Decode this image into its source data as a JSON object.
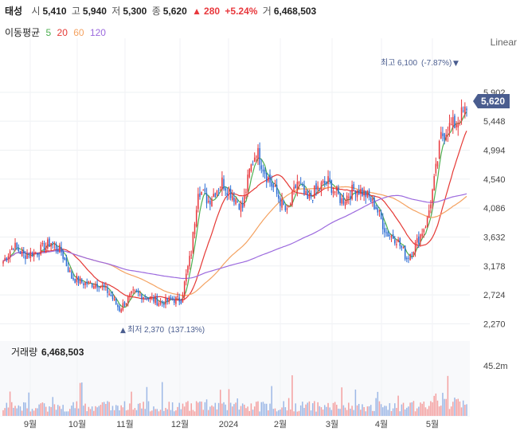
{
  "header": {
    "name": "태성",
    "open_label": "시",
    "open": "5,410",
    "high_label": "고",
    "high": "5,940",
    "low_label": "저",
    "low": "5,300",
    "close_label": "종",
    "close": "5,620",
    "change_arrow": "▲",
    "change": "280",
    "change_pct": "+5.24%",
    "volume_label": "거",
    "volume": "6,468,503"
  },
  "ma_legend": {
    "label": "이동평균",
    "periods": [
      {
        "text": "5",
        "color": "#4caf50"
      },
      {
        "text": "20",
        "color": "#e53935"
      },
      {
        "text": "60",
        "color": "#f4a261"
      },
      {
        "text": "120",
        "color": "#9c6ade"
      }
    ]
  },
  "scale_mode": "Linear",
  "colors": {
    "up": "#e8383d",
    "down": "#2b6cd4",
    "volume_up": "#f4a0a0",
    "volume_down": "#9db8e6",
    "badge": "#4a5d8f"
  },
  "chart_data": {
    "type": "candlestick",
    "y_axis": {
      "ticks": [
        "5,902",
        "5,448",
        "4,994",
        "4,540",
        "4,086",
        "3,632",
        "3,178",
        "2,724",
        "2,270"
      ],
      "range": [
        2100,
        6250
      ]
    },
    "x_axis": {
      "ticks": [
        "9월",
        "10월",
        "11월",
        "12월",
        "2024",
        "2월",
        "3월",
        "4월",
        "5월"
      ]
    },
    "current_price": "5,620",
    "max_annotation": {
      "label": "최고",
      "value": "6,100",
      "pct": "(-7.87%)",
      "arrow": "▼"
    },
    "min_annotation": {
      "label": "최저",
      "value": "2,370",
      "pct": "(137.13%)",
      "arrow": "▲"
    },
    "volume_panel": {
      "label": "거래량",
      "value": "6,468,503",
      "max_tick": "45.2m"
    },
    "series_close_keypoints": [
      [
        0,
        3250
      ],
      [
        6,
        3500
      ],
      [
        12,
        3350
      ],
      [
        20,
        3400
      ],
      [
        28,
        3550
      ],
      [
        34,
        3400
      ],
      [
        40,
        3000
      ],
      [
        48,
        2900
      ],
      [
        56,
        2900
      ],
      [
        62,
        2750
      ],
      [
        68,
        2500
      ],
      [
        76,
        2750
      ],
      [
        84,
        2700
      ],
      [
        92,
        2600
      ],
      [
        98,
        2650
      ],
      [
        104,
        2650
      ],
      [
        110,
        3400
      ],
      [
        114,
        4400
      ],
      [
        120,
        4200
      ],
      [
        128,
        4500
      ],
      [
        134,
        4300
      ],
      [
        140,
        4100
      ],
      [
        144,
        4650
      ],
      [
        148,
        5000
      ],
      [
        154,
        4600
      ],
      [
        160,
        4300
      ],
      [
        166,
        4000
      ],
      [
        172,
        4500
      ],
      [
        178,
        4200
      ],
      [
        184,
        4400
      ],
      [
        190,
        4500
      ],
      [
        198,
        4200
      ],
      [
        206,
        4400
      ],
      [
        212,
        4300
      ],
      [
        218,
        4100
      ],
      [
        224,
        3700
      ],
      [
        230,
        3600
      ],
      [
        236,
        3300
      ],
      [
        242,
        3550
      ],
      [
        248,
        3900
      ],
      [
        252,
        4500
      ],
      [
        256,
        5200
      ],
      [
        260,
        5350
      ],
      [
        264,
        5400
      ],
      [
        268,
        5550
      ],
      [
        271,
        5620
      ]
    ],
    "ma_series": [
      "5",
      "20",
      "60",
      "120"
    ]
  }
}
